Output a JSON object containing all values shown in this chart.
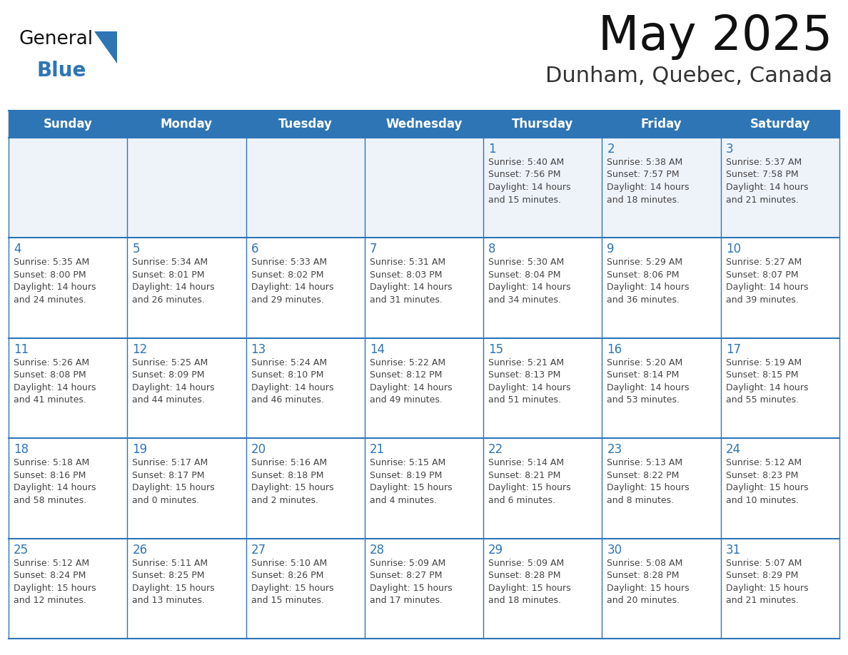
{
  "title": "May 2025",
  "subtitle": "Dunham, Quebec, Canada",
  "header_bg": "#2E75B6",
  "header_text_color": "#FFFFFF",
  "row1_bg": "#EEF3FA",
  "row_bg": "#FFFFFF",
  "row_separator_color": "#2E75B6",
  "outer_border_color": "#2E75B6",
  "day_number_color": "#2E75B6",
  "text_color": "#444444",
  "days_of_week": [
    "Sunday",
    "Monday",
    "Tuesday",
    "Wednesday",
    "Thursday",
    "Friday",
    "Saturday"
  ],
  "weeks": [
    [
      {
        "day": 0,
        "text": ""
      },
      {
        "day": 0,
        "text": ""
      },
      {
        "day": 0,
        "text": ""
      },
      {
        "day": 0,
        "text": ""
      },
      {
        "day": 1,
        "text": "Sunrise: 5:40 AM\nSunset: 7:56 PM\nDaylight: 14 hours\nand 15 minutes."
      },
      {
        "day": 2,
        "text": "Sunrise: 5:38 AM\nSunset: 7:57 PM\nDaylight: 14 hours\nand 18 minutes."
      },
      {
        "day": 3,
        "text": "Sunrise: 5:37 AM\nSunset: 7:58 PM\nDaylight: 14 hours\nand 21 minutes."
      }
    ],
    [
      {
        "day": 4,
        "text": "Sunrise: 5:35 AM\nSunset: 8:00 PM\nDaylight: 14 hours\nand 24 minutes."
      },
      {
        "day": 5,
        "text": "Sunrise: 5:34 AM\nSunset: 8:01 PM\nDaylight: 14 hours\nand 26 minutes."
      },
      {
        "day": 6,
        "text": "Sunrise: 5:33 AM\nSunset: 8:02 PM\nDaylight: 14 hours\nand 29 minutes."
      },
      {
        "day": 7,
        "text": "Sunrise: 5:31 AM\nSunset: 8:03 PM\nDaylight: 14 hours\nand 31 minutes."
      },
      {
        "day": 8,
        "text": "Sunrise: 5:30 AM\nSunset: 8:04 PM\nDaylight: 14 hours\nand 34 minutes."
      },
      {
        "day": 9,
        "text": "Sunrise: 5:29 AM\nSunset: 8:06 PM\nDaylight: 14 hours\nand 36 minutes."
      },
      {
        "day": 10,
        "text": "Sunrise: 5:27 AM\nSunset: 8:07 PM\nDaylight: 14 hours\nand 39 minutes."
      }
    ],
    [
      {
        "day": 11,
        "text": "Sunrise: 5:26 AM\nSunset: 8:08 PM\nDaylight: 14 hours\nand 41 minutes."
      },
      {
        "day": 12,
        "text": "Sunrise: 5:25 AM\nSunset: 8:09 PM\nDaylight: 14 hours\nand 44 minutes."
      },
      {
        "day": 13,
        "text": "Sunrise: 5:24 AM\nSunset: 8:10 PM\nDaylight: 14 hours\nand 46 minutes."
      },
      {
        "day": 14,
        "text": "Sunrise: 5:22 AM\nSunset: 8:12 PM\nDaylight: 14 hours\nand 49 minutes."
      },
      {
        "day": 15,
        "text": "Sunrise: 5:21 AM\nSunset: 8:13 PM\nDaylight: 14 hours\nand 51 minutes."
      },
      {
        "day": 16,
        "text": "Sunrise: 5:20 AM\nSunset: 8:14 PM\nDaylight: 14 hours\nand 53 minutes."
      },
      {
        "day": 17,
        "text": "Sunrise: 5:19 AM\nSunset: 8:15 PM\nDaylight: 14 hours\nand 55 minutes."
      }
    ],
    [
      {
        "day": 18,
        "text": "Sunrise: 5:18 AM\nSunset: 8:16 PM\nDaylight: 14 hours\nand 58 minutes."
      },
      {
        "day": 19,
        "text": "Sunrise: 5:17 AM\nSunset: 8:17 PM\nDaylight: 15 hours\nand 0 minutes."
      },
      {
        "day": 20,
        "text": "Sunrise: 5:16 AM\nSunset: 8:18 PM\nDaylight: 15 hours\nand 2 minutes."
      },
      {
        "day": 21,
        "text": "Sunrise: 5:15 AM\nSunset: 8:19 PM\nDaylight: 15 hours\nand 4 minutes."
      },
      {
        "day": 22,
        "text": "Sunrise: 5:14 AM\nSunset: 8:21 PM\nDaylight: 15 hours\nand 6 minutes."
      },
      {
        "day": 23,
        "text": "Sunrise: 5:13 AM\nSunset: 8:22 PM\nDaylight: 15 hours\nand 8 minutes."
      },
      {
        "day": 24,
        "text": "Sunrise: 5:12 AM\nSunset: 8:23 PM\nDaylight: 15 hours\nand 10 minutes."
      }
    ],
    [
      {
        "day": 25,
        "text": "Sunrise: 5:12 AM\nSunset: 8:24 PM\nDaylight: 15 hours\nand 12 minutes."
      },
      {
        "day": 26,
        "text": "Sunrise: 5:11 AM\nSunset: 8:25 PM\nDaylight: 15 hours\nand 13 minutes."
      },
      {
        "day": 27,
        "text": "Sunrise: 5:10 AM\nSunset: 8:26 PM\nDaylight: 15 hours\nand 15 minutes."
      },
      {
        "day": 28,
        "text": "Sunrise: 5:09 AM\nSunset: 8:27 PM\nDaylight: 15 hours\nand 17 minutes."
      },
      {
        "day": 29,
        "text": "Sunrise: 5:09 AM\nSunset: 8:28 PM\nDaylight: 15 hours\nand 18 minutes."
      },
      {
        "day": 30,
        "text": "Sunrise: 5:08 AM\nSunset: 8:28 PM\nDaylight: 15 hours\nand 20 minutes."
      },
      {
        "day": 31,
        "text": "Sunrise: 5:07 AM\nSunset: 8:29 PM\nDaylight: 15 hours\nand 21 minutes."
      }
    ]
  ]
}
